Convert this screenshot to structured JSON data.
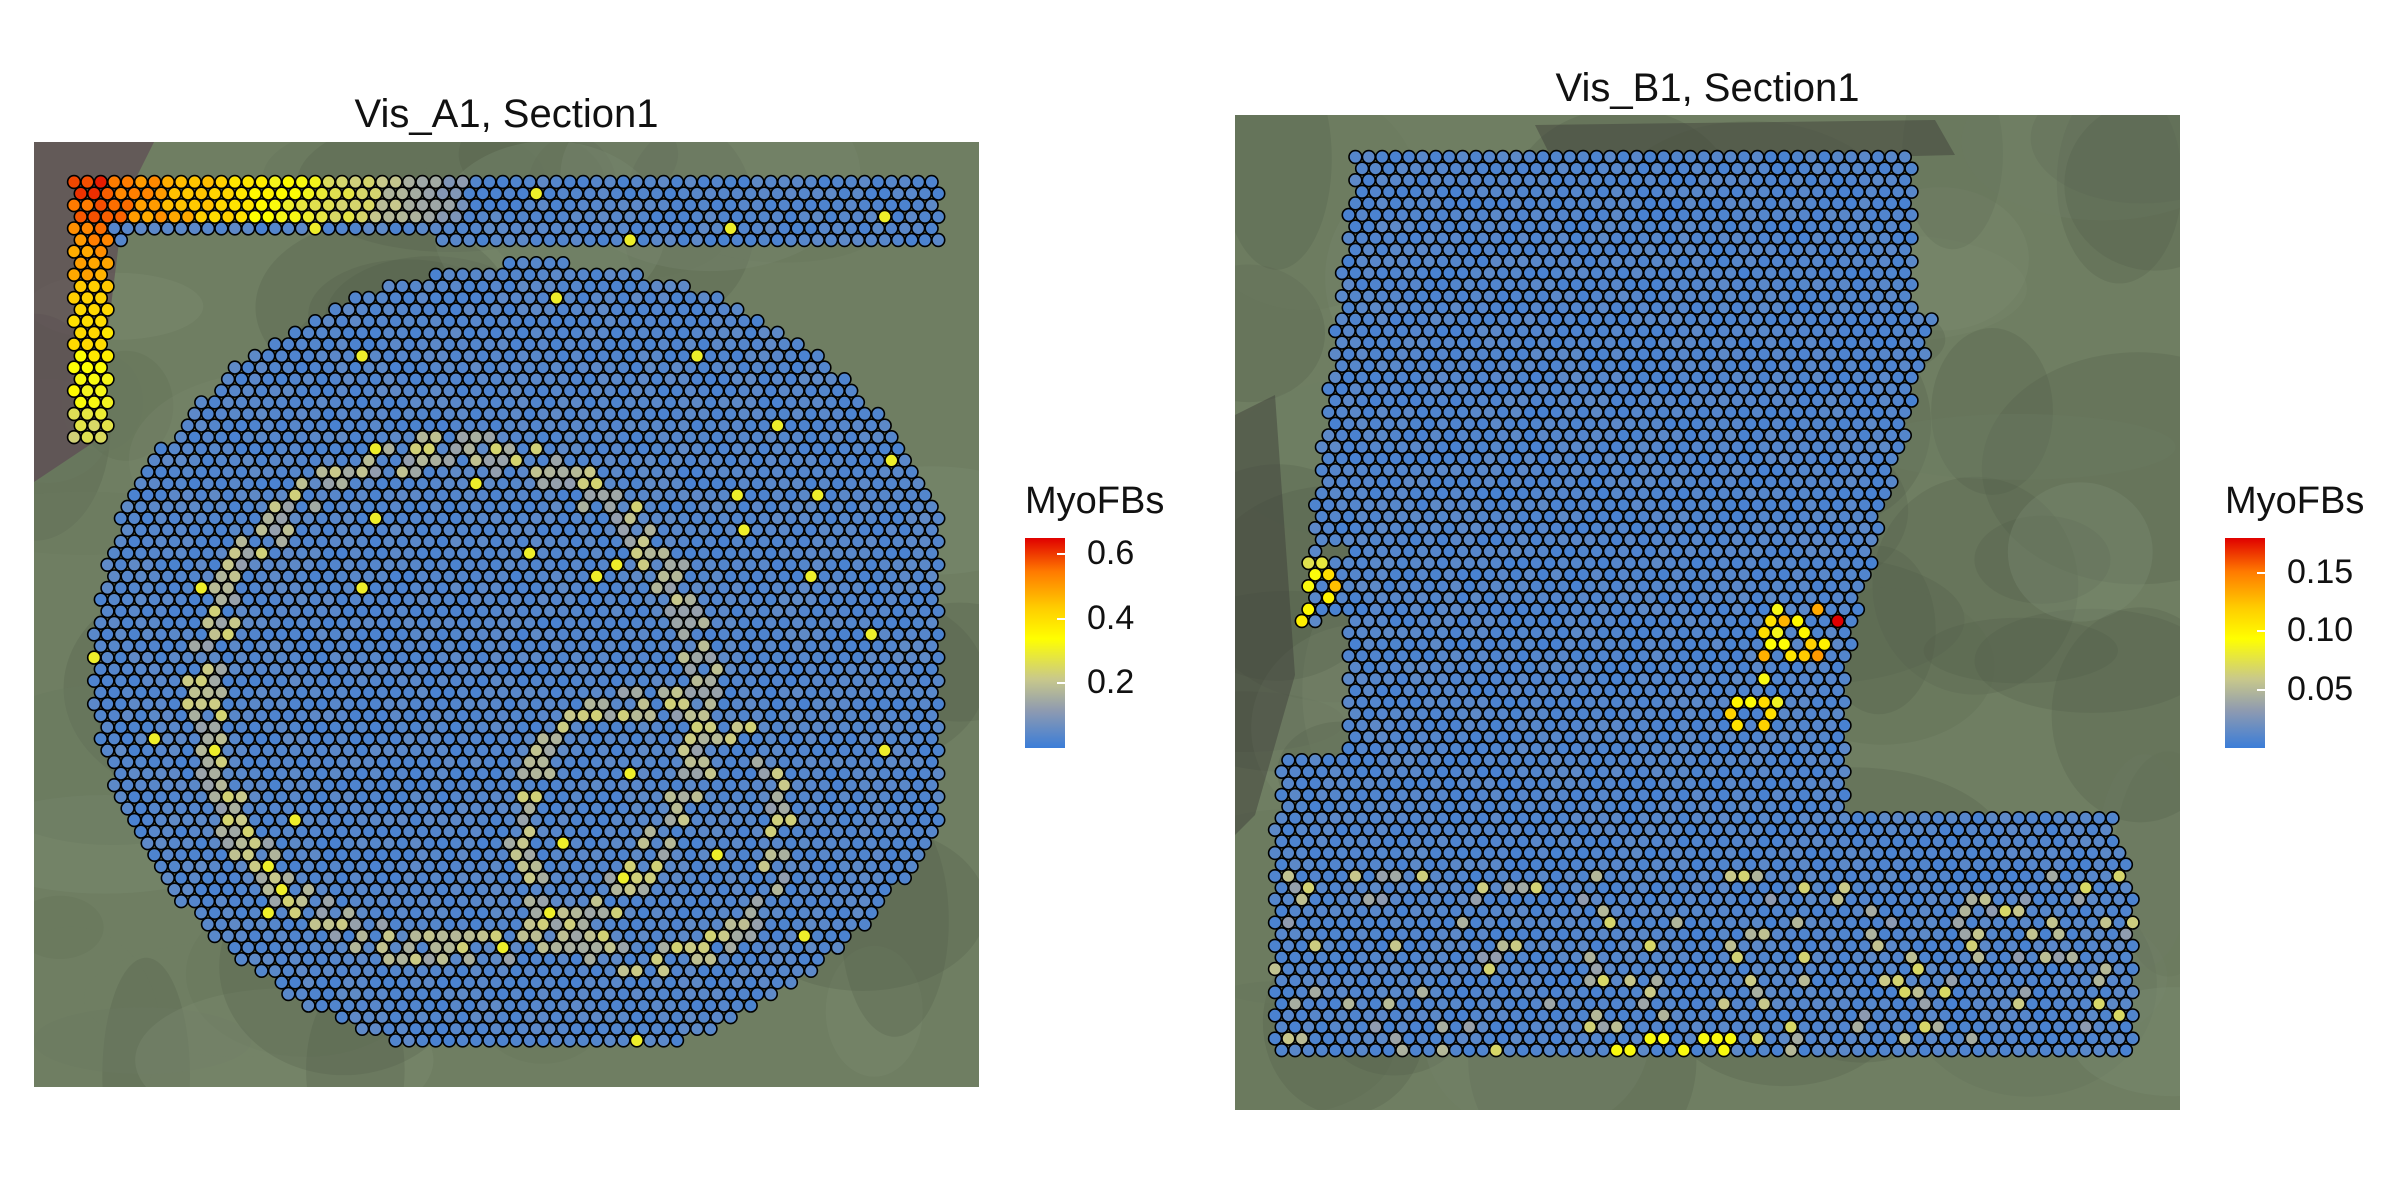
{
  "chart_data": [
    {
      "type": "scatter",
      "title": "Vis_A1, Section1",
      "legend": {
        "title": "MyoFBs",
        "ticks": [
          "0.2",
          "0.4",
          "0.6"
        ],
        "tick_values": [
          0.2,
          0.4,
          0.6
        ],
        "range": [
          0,
          0.65
        ],
        "placement": "right"
      },
      "colorscale": [
        "#3b7dd8",
        "#8f9bb0",
        "#c9c98a",
        "#ffff00",
        "#ffcc00",
        "#ff7a00",
        "#e00000"
      ],
      "background": "tissue-image",
      "x": [],
      "y": [],
      "values": []
    },
    {
      "type": "scatter",
      "title": "Vis_B1, Section1",
      "legend": {
        "title": "MyoFBs",
        "ticks": [
          "0.05",
          "0.10",
          "0.15"
        ],
        "tick_values": [
          0.05,
          0.1,
          0.15
        ],
        "range": [
          0,
          0.18
        ],
        "placement": "right"
      },
      "colorscale": [
        "#3b7dd8",
        "#8f9bb0",
        "#c9c98a",
        "#ffff00",
        "#ffcc00",
        "#ff7a00",
        "#e00000"
      ],
      "background": "tissue-image",
      "x": [],
      "y": [],
      "values": []
    }
  ]
}
